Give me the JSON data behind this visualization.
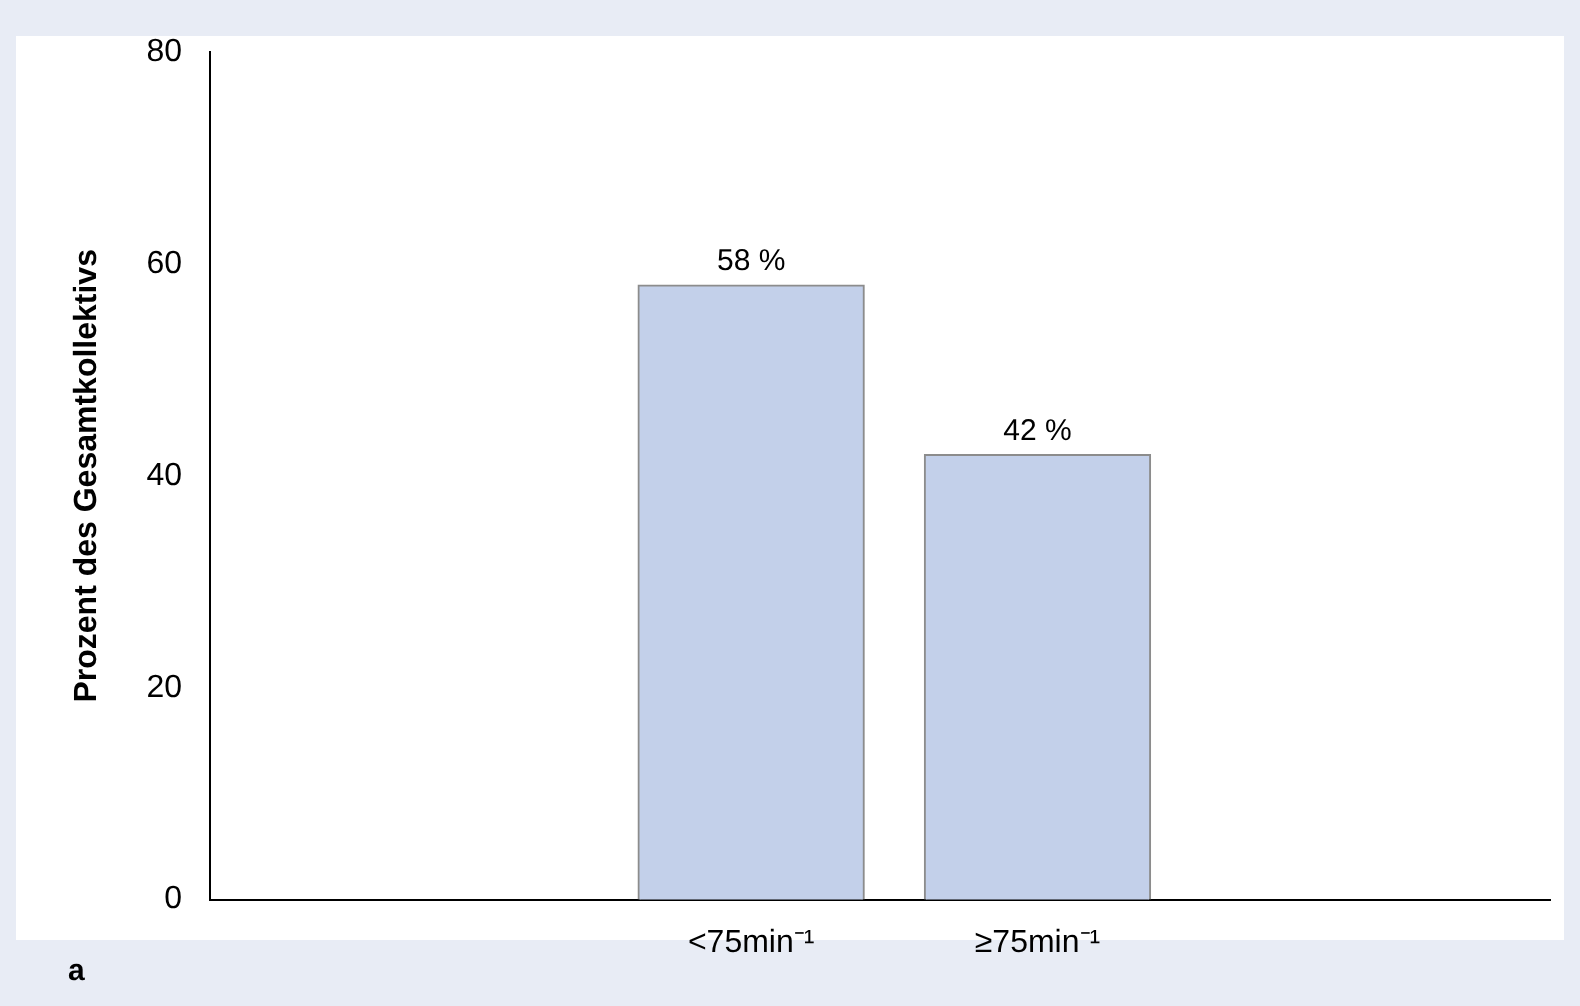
{
  "chart_data": {
    "type": "bar",
    "ylabel": "Prozent des Gesamtkollektivs",
    "categories": [
      "<75min⁻¹",
      "≥75min⁻¹"
    ],
    "values": [
      58,
      42
    ],
    "value_labels": [
      "58 %",
      "42 %"
    ],
    "color": "#c3d0ea",
    "ylim": [
      0,
      80
    ],
    "yticks": [
      0,
      20,
      40,
      60,
      80
    ],
    "grid": false,
    "legend": false,
    "annotations": [
      "a"
    ]
  }
}
